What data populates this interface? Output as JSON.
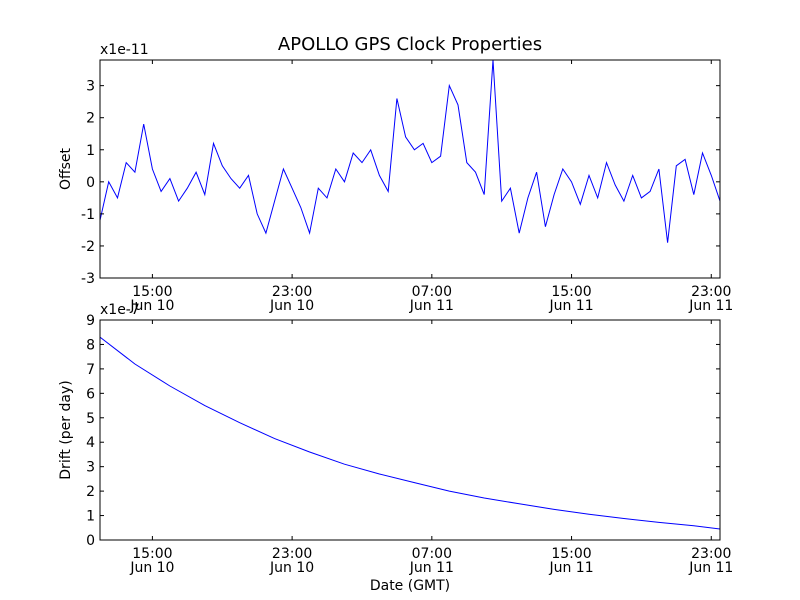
{
  "figure": {
    "title": "APOLLO GPS Clock Properties",
    "xlabel": "Date (GMT)"
  },
  "colors": {
    "line": "#0000ff",
    "axes": "#000000",
    "background": "#ffffff"
  },
  "chart_data": [
    {
      "type": "line",
      "name": "offset-chart",
      "title": "APOLLO GPS Clock Properties",
      "ylabel": "Offset",
      "offset_label": "x1e-11",
      "xlim": [
        12.0,
        47.5
      ],
      "ylim": [
        -3,
        3.8
      ],
      "yticks": [
        -3,
        -2,
        -1,
        0,
        1,
        2,
        3
      ],
      "ytick_labels": [
        "-3",
        "-2",
        "-1",
        "0",
        "1",
        "2",
        "3"
      ],
      "xticks": [
        15,
        23,
        31,
        39,
        47
      ],
      "xtick_labels": [
        [
          "15:00",
          "Jun 10"
        ],
        [
          "23:00",
          "Jun 10"
        ],
        [
          "07:00",
          "Jun 11"
        ],
        [
          "15:00",
          "Jun 11"
        ],
        [
          "23:00",
          "Jun 11"
        ]
      ],
      "series": [
        {
          "name": "offset",
          "x_hours_from_jun10": [
            12.0,
            12.5,
            13.0,
            13.5,
            14.0,
            14.5,
            15.0,
            15.5,
            16.0,
            16.5,
            17.0,
            17.5,
            18.0,
            18.5,
            19.0,
            19.5,
            20.0,
            20.5,
            21.0,
            21.5,
            22.0,
            22.5,
            23.0,
            23.5,
            24.0,
            24.5,
            25.0,
            25.5,
            26.0,
            26.5,
            27.0,
            27.5,
            28.0,
            28.5,
            29.0,
            29.5,
            30.0,
            30.5,
            31.0,
            31.5,
            32.0,
            32.5,
            33.0,
            33.5,
            34.0,
            34.5,
            35.0,
            35.5,
            36.0,
            36.5,
            37.0,
            37.5,
            38.0,
            38.5,
            39.0,
            39.5,
            40.0,
            40.5,
            41.0,
            41.5,
            42.0,
            42.5,
            43.0,
            43.5,
            44.0,
            44.5,
            45.0,
            45.5,
            46.0,
            46.5,
            47.0,
            47.5
          ],
          "y_1e-11": [
            -1.2,
            0.0,
            -0.5,
            0.6,
            0.3,
            1.8,
            0.4,
            -0.3,
            0.1,
            -0.6,
            -0.2,
            0.3,
            -0.4,
            1.2,
            0.5,
            0.1,
            -0.2,
            0.2,
            -1.0,
            -1.6,
            -0.6,
            0.4,
            -0.2,
            -0.8,
            -1.6,
            -0.2,
            -0.5,
            0.4,
            0.0,
            0.9,
            0.6,
            1.0,
            0.2,
            -0.3,
            2.6,
            1.4,
            1.0,
            1.2,
            0.6,
            0.8,
            3.0,
            2.4,
            0.6,
            0.3,
            -0.4,
            3.8,
            -0.6,
            -0.2,
            -1.6,
            -0.5,
            0.3,
            -1.4,
            -0.4,
            0.4,
            0.0,
            -0.7,
            0.2,
            -0.5,
            0.6,
            -0.1,
            -0.6,
            0.2,
            -0.5,
            -0.3,
            0.4,
            -1.9,
            0.5,
            0.7,
            -0.4,
            0.9,
            0.2,
            -0.6
          ]
        }
      ]
    },
    {
      "type": "line",
      "name": "drift-chart",
      "ylabel": "Drift (per day)",
      "offset_label": "x1e-7",
      "xlabel": "Date (GMT)",
      "xlim": [
        12.0,
        47.5
      ],
      "ylim": [
        0,
        9
      ],
      "yticks": [
        0,
        1,
        2,
        3,
        4,
        5,
        6,
        7,
        8,
        9
      ],
      "ytick_labels": [
        "0",
        "1",
        "2",
        "3",
        "4",
        "5",
        "6",
        "7",
        "8",
        "9"
      ],
      "xticks": [
        15,
        23,
        31,
        39,
        47
      ],
      "xtick_labels": [
        [
          "15:00",
          "Jun 10"
        ],
        [
          "23:00",
          "Jun 10"
        ],
        [
          "07:00",
          "Jun 11"
        ],
        [
          "15:00",
          "Jun 11"
        ],
        [
          "23:00",
          "Jun 11"
        ]
      ],
      "series": [
        {
          "name": "drift",
          "x_hours_from_jun10": [
            12.0,
            14.0,
            16.0,
            18.0,
            20.0,
            22.0,
            24.0,
            26.0,
            28.0,
            30.0,
            32.0,
            34.0,
            36.0,
            38.0,
            40.0,
            42.0,
            44.0,
            46.0,
            47.5
          ],
          "y_1e-7": [
            8.3,
            7.2,
            6.3,
            5.5,
            4.8,
            4.15,
            3.6,
            3.1,
            2.7,
            2.35,
            2.0,
            1.72,
            1.48,
            1.25,
            1.05,
            0.88,
            0.72,
            0.58,
            0.45
          ]
        }
      ]
    }
  ]
}
